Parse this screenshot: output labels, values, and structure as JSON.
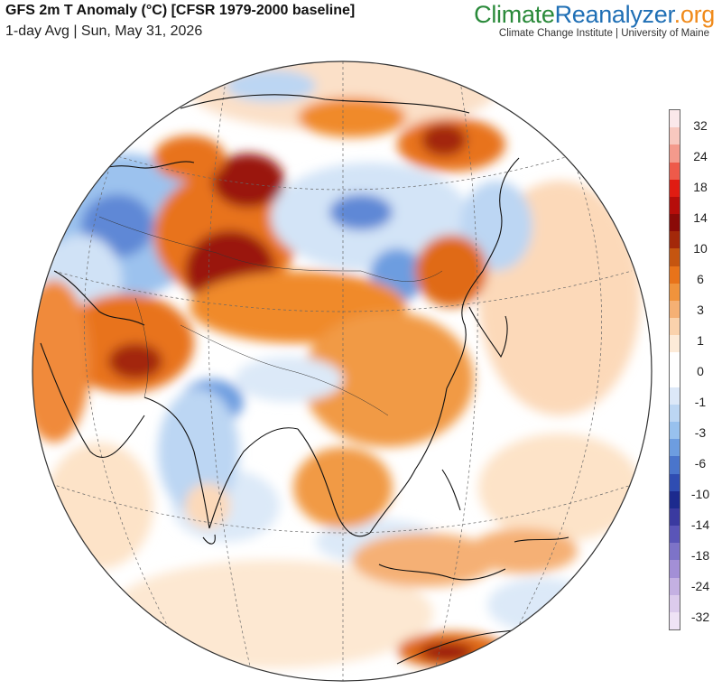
{
  "header": {
    "title": "GFS 2m T Anomaly (°C) [CFSR 1979-2000 baseline]",
    "subtitle": "1-day Avg | Sun, May 31, 2026"
  },
  "branding": {
    "name_part1": "Climate",
    "name_part2": "Reanalyzer",
    "name_part3": ".org",
    "affiliation": "Climate Change Institute | University of Maine",
    "colors": {
      "part1": "#2a8a3a",
      "part2": "#1f6fb5",
      "part3": "#f08a1a"
    }
  },
  "legend": {
    "labels": [
      "32",
      "24",
      "18",
      "14",
      "10",
      "6",
      "3",
      "1",
      "0",
      "-1",
      "-3",
      "-6",
      "-10",
      "-14",
      "-18",
      "-24",
      "-32"
    ],
    "colors": [
      "#fbe8ea",
      "#f8c8bf",
      "#f49a8c",
      "#ee5a4a",
      "#e01c12",
      "#b60d0a",
      "#8a0a08",
      "#a3280a",
      "#c55510",
      "#e8731a",
      "#f0933c",
      "#f5b074",
      "#fad2ac",
      "#fdebd8",
      "#ffffff",
      "#ffffff",
      "#dce8f8",
      "#bcd6f3",
      "#98c1ee",
      "#6d9de0",
      "#4a75cc",
      "#2f4db2",
      "#1c2a8e",
      "#3a3aa0",
      "#5a55b8",
      "#7d73c8",
      "#a38fd6",
      "#c4b0e2",
      "#dccbec",
      "#efe3f5"
    ]
  },
  "map": {
    "projection": "orthographic",
    "center": "Asia",
    "scale_colors": {
      "ocean_neutral": "#ffffff",
      "warm_weak": "#fcd9b9",
      "warm_moderate": "#f5a25a",
      "warm_strong": "#e06a12",
      "hot": "#9a1408",
      "cool_weak": "#dbe9f8",
      "cool_moderate": "#9cc2ee",
      "cool_strong": "#5578cc"
    }
  }
}
